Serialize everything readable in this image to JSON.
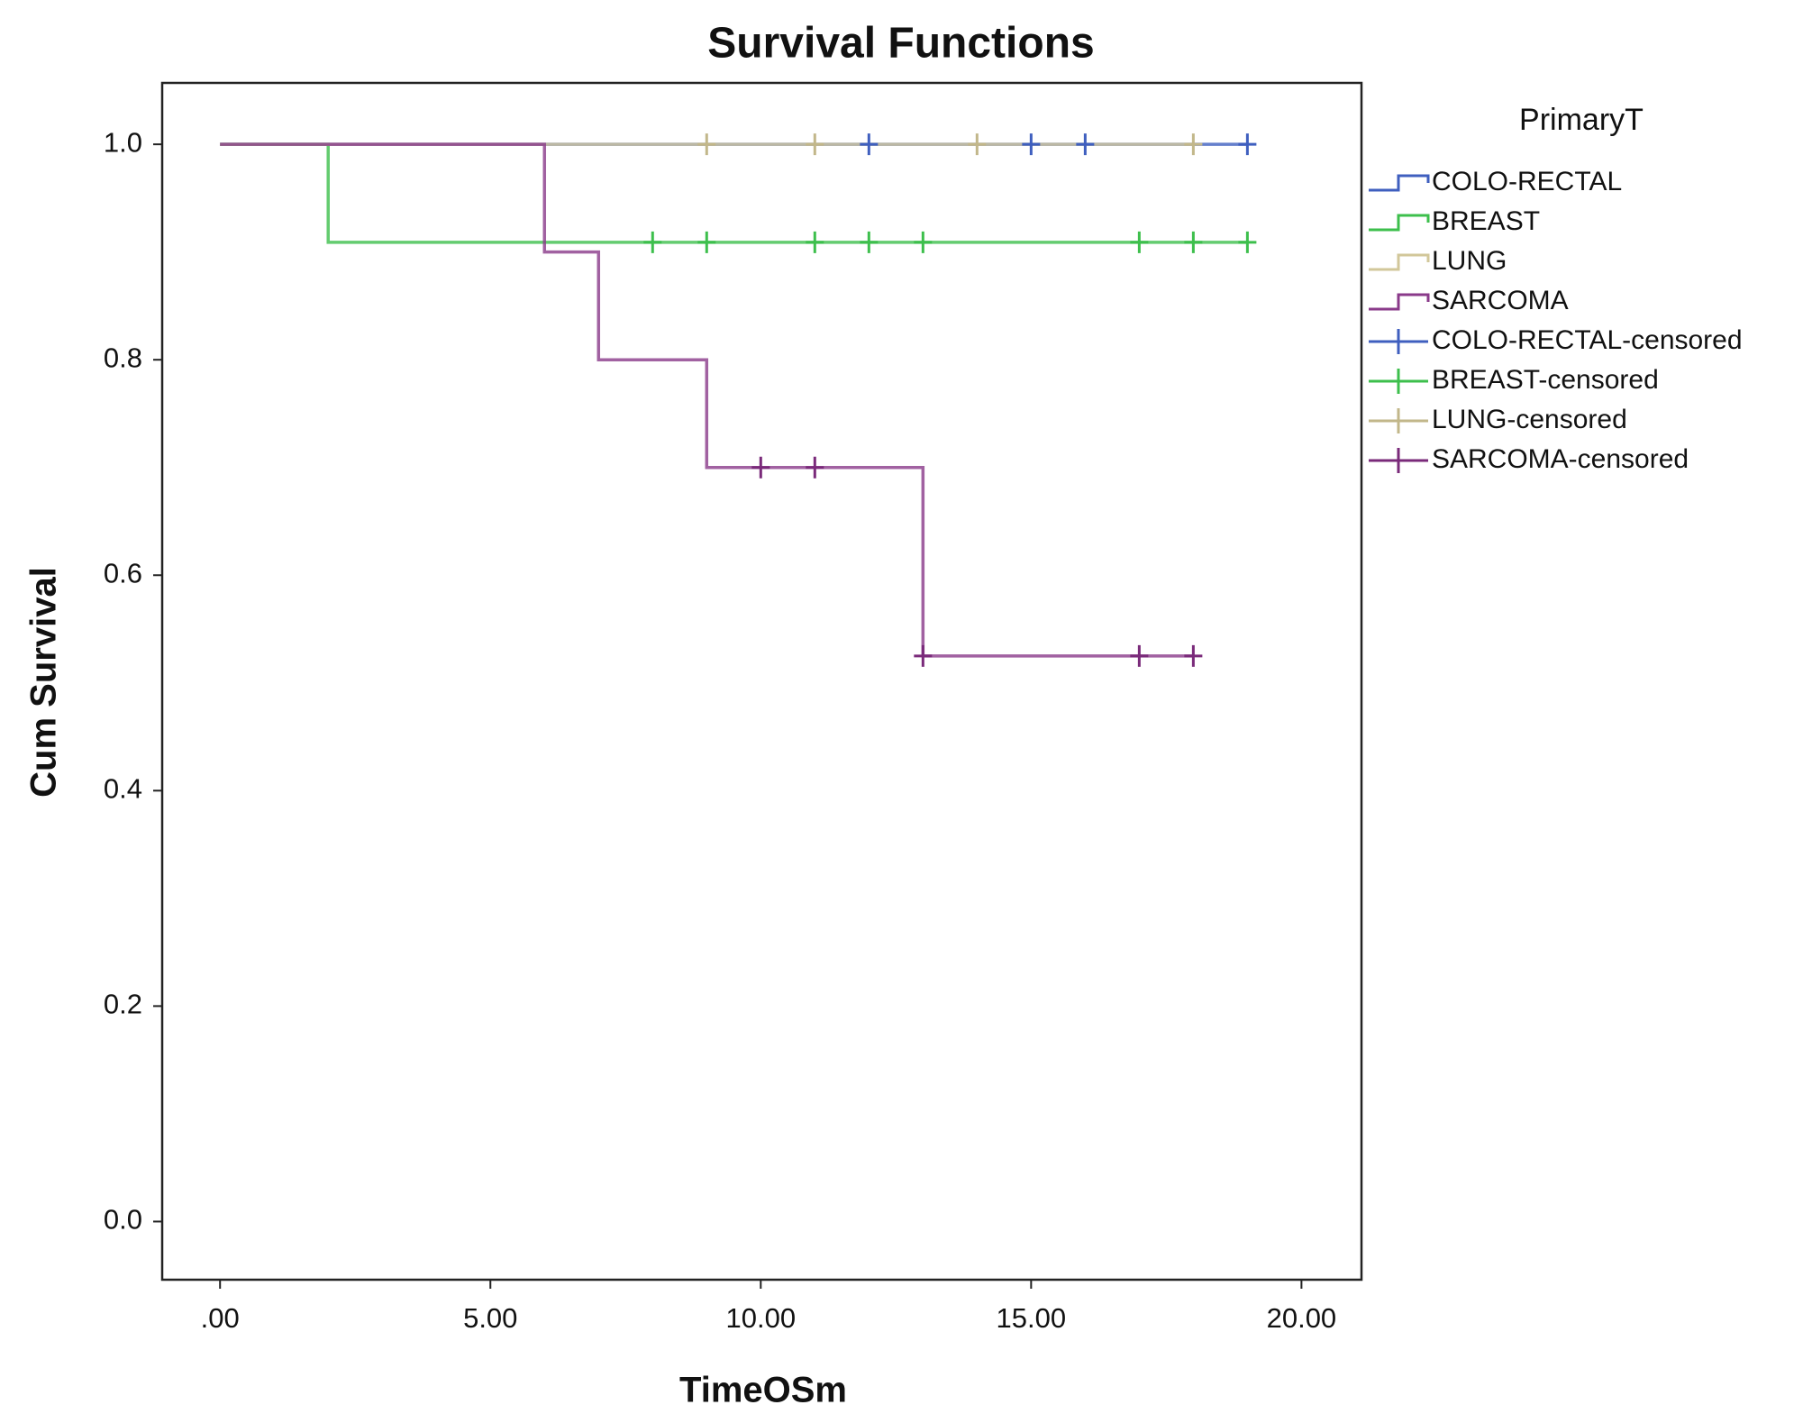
{
  "chart_data": {
    "type": "survival",
    "title": "Survival Functions",
    "x_label": "TimeOSm",
    "y_label": "Cum Survival",
    "legend_title": "PrimaryT",
    "xlim": [
      -1.07,
      21.11
    ],
    "ylim": [
      -0.054,
      1.057
    ],
    "xticks": [
      {
        "value": 0,
        "label": ".00"
      },
      {
        "value": 5,
        "label": "5.00"
      },
      {
        "value": 10,
        "label": "10.00"
      },
      {
        "value": 15,
        "label": "15.00"
      },
      {
        "value": 20,
        "label": "20.00"
      }
    ],
    "yticks": [
      {
        "value": 0,
        "label": "0.0"
      },
      0.2,
      0.4,
      0.6,
      0.8,
      {
        "value": 1,
        "label": "1.0"
      }
    ],
    "series": [
      {
        "name": "COLO-RECTAL",
        "type": "line",
        "color": "#3f5fbf",
        "x": [
          0,
          19
        ],
        "values": [
          1,
          1
        ]
      },
      {
        "name": "BREAST",
        "type": "line",
        "color": "#3dbf4c",
        "x": [
          0,
          2,
          2,
          19
        ],
        "values": [
          1,
          1,
          0.909,
          0.909
        ]
      },
      {
        "name": "LUNG",
        "type": "line",
        "color": "#d2c79a",
        "x": [
          0,
          18
        ],
        "values": [
          1,
          1
        ]
      },
      {
        "name": "SARCOMA",
        "type": "line",
        "color": "#8a3a8a",
        "x": [
          0,
          6,
          6,
          7,
          7,
          9,
          9,
          13,
          13,
          18
        ],
        "values": [
          1,
          1,
          0.9,
          0.9,
          0.8,
          0.8,
          0.7,
          0.7,
          0.525,
          0.525
        ]
      },
      {
        "name": "COLO-RECTAL-censored",
        "type": "scatter",
        "color": "#3f5fbf",
        "x": [
          12,
          15,
          16,
          19
        ],
        "values": [
          1,
          1,
          1,
          1
        ]
      },
      {
        "name": "BREAST-censored",
        "type": "scatter",
        "color": "#3dbf4c",
        "x": [
          8,
          9,
          11,
          12,
          13,
          17,
          18,
          19
        ],
        "values": [
          0.909,
          0.909,
          0.909,
          0.909,
          0.909,
          0.909,
          0.909,
          0.909
        ]
      },
      {
        "name": "LUNG-censored",
        "type": "scatter",
        "color": "#c2b78a",
        "x": [
          9,
          11,
          14,
          18
        ],
        "values": [
          1,
          1,
          1,
          1
        ]
      },
      {
        "name": "SARCOMA-censored",
        "type": "scatter",
        "color": "#7a2a7a",
        "x": [
          10,
          11,
          13,
          17,
          18
        ],
        "values": [
          0.7,
          0.7,
          0.525,
          0.525,
          0.525
        ]
      }
    ]
  }
}
